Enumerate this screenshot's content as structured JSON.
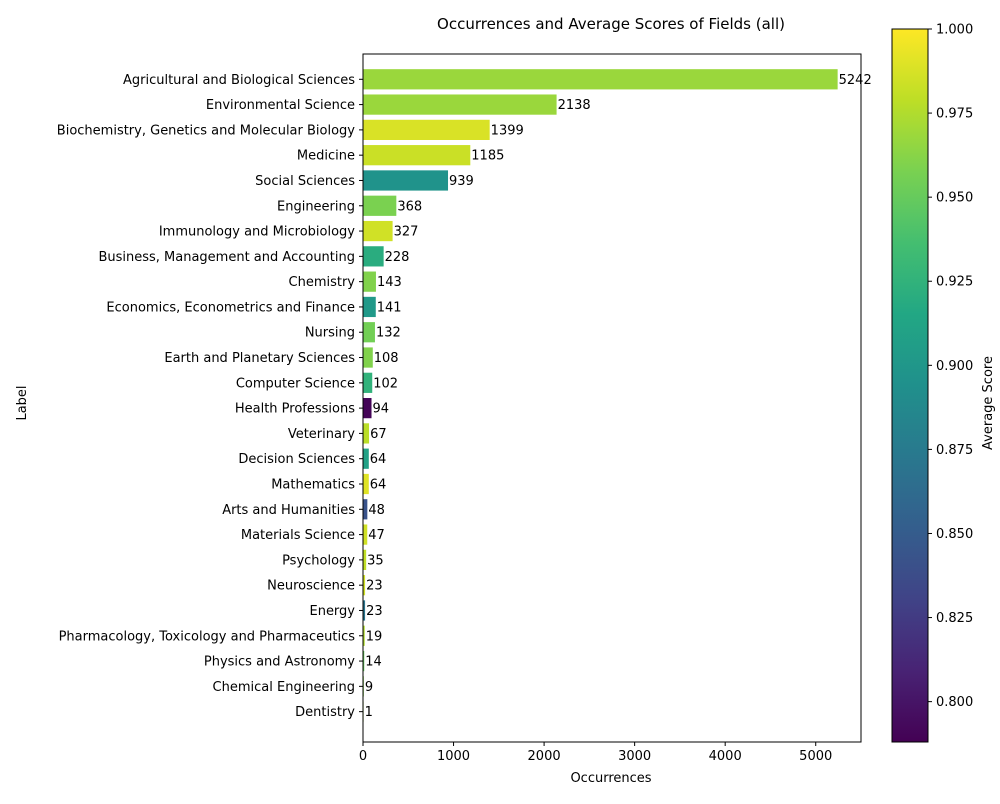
{
  "chart_data": {
    "type": "bar",
    "orientation": "horizontal",
    "title": "Occurrences and Average Scores of Fields (all)",
    "xlabel": "Occurrences",
    "ylabel": "Label",
    "xlim": [
      0,
      5500
    ],
    "xticks": [
      "0",
      "1000",
      "2000",
      "3000",
      "4000",
      "5000"
    ],
    "grid": false,
    "colorbar": {
      "label": "Average Score",
      "colormap": "viridis",
      "range": [
        0.788,
        1.0
      ],
      "ticks": [
        "0.800",
        "0.825",
        "0.850",
        "0.875",
        "0.900",
        "0.925",
        "0.950",
        "0.975",
        "1.000"
      ]
    },
    "bars": [
      {
        "label": "Agricultural and Biological Sciences",
        "value": 5242,
        "value_label": "5242",
        "score": 0.968
      },
      {
        "label": "Environmental Science",
        "value": 2138,
        "value_label": "2138",
        "score": 0.968
      },
      {
        "label": "Biochemistry, Genetics and Molecular Biology",
        "value": 1399,
        "value_label": "1399",
        "score": 0.988
      },
      {
        "label": "Medicine",
        "value": 1185,
        "value_label": "1185",
        "score": 0.983
      },
      {
        "label": "Social Sciences",
        "value": 939,
        "value_label": "939",
        "score": 0.897
      },
      {
        "label": "Engineering",
        "value": 368,
        "value_label": "368",
        "score": 0.958
      },
      {
        "label": "Immunology and Microbiology",
        "value": 327,
        "value_label": "327",
        "score": 0.985
      },
      {
        "label": "Business, Management and Accounting",
        "value": 228,
        "value_label": "228",
        "score": 0.92
      },
      {
        "label": "Chemistry",
        "value": 143,
        "value_label": "143",
        "score": 0.96
      },
      {
        "label": "Economics, Econometrics and Finance",
        "value": 141,
        "value_label": "141",
        "score": 0.902
      },
      {
        "label": "Nursing",
        "value": 132,
        "value_label": "132",
        "score": 0.955
      },
      {
        "label": "Earth and Planetary Sciences",
        "value": 108,
        "value_label": "108",
        "score": 0.96
      },
      {
        "label": "Computer Science",
        "value": 102,
        "value_label": "102",
        "score": 0.925
      },
      {
        "label": "Health Professions",
        "value": 94,
        "value_label": "94",
        "score": 0.79
      },
      {
        "label": "Veterinary",
        "value": 67,
        "value_label": "67",
        "score": 0.978
      },
      {
        "label": "Decision Sciences",
        "value": 64,
        "value_label": "64",
        "score": 0.91
      },
      {
        "label": "Mathematics",
        "value": 64,
        "value_label": "64",
        "score": 0.99
      },
      {
        "label": "Arts and Humanities",
        "value": 48,
        "value_label": "48",
        "score": 0.842
      },
      {
        "label": "Materials Science",
        "value": 47,
        "value_label": "47",
        "score": 0.985
      },
      {
        "label": "Psychology",
        "value": 35,
        "value_label": "35",
        "score": 0.98
      },
      {
        "label": "Neuroscience",
        "value": 23,
        "value_label": "23",
        "score": 0.985
      },
      {
        "label": "Energy",
        "value": 23,
        "value_label": "23",
        "score": 0.87
      },
      {
        "label": "Pharmacology, Toxicology and Pharmaceutics",
        "value": 19,
        "value_label": "19",
        "score": 0.975
      },
      {
        "label": "Physics and Astronomy",
        "value": 14,
        "value_label": "14",
        "score": 0.95
      },
      {
        "label": "Chemical Engineering",
        "value": 9,
        "value_label": "9",
        "score": 0.96
      },
      {
        "label": "Dentistry",
        "value": 1,
        "value_label": "1",
        "score": 0.97
      }
    ]
  }
}
